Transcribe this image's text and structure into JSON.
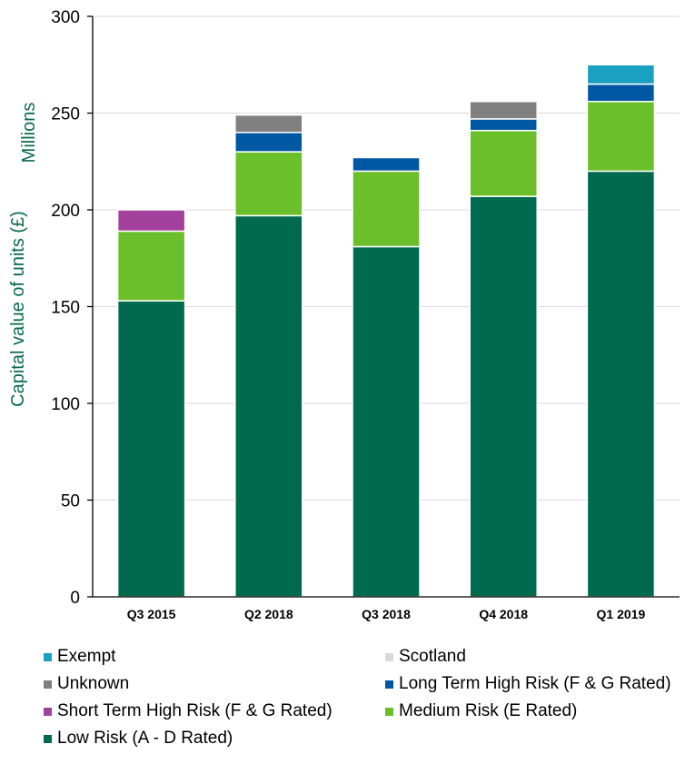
{
  "chart_data": {
    "type": "bar",
    "stacked": true,
    "title": "",
    "xlabel": "",
    "ylabel": "Capital value of units (£)",
    "y_unit_label": "Millions",
    "ylim": [
      0,
      300
    ],
    "yticks": [
      0,
      50,
      100,
      150,
      200,
      250,
      300
    ],
    "grid": true,
    "legend_position": "bottom",
    "categories": [
      "Q3 2015",
      "Q2 2018",
      "Q3 2018",
      "Q4 2018",
      "Q1 2019"
    ],
    "series": [
      {
        "name": "Low Risk (A - D Rated)",
        "color": "#006a4e",
        "values": [
          153,
          197,
          181,
          207,
          220
        ]
      },
      {
        "name": "Medium Risk (E Rated)",
        "color": "#6abf2a",
        "values": [
          36,
          33,
          39,
          34,
          36
        ]
      },
      {
        "name": "Short Term High Risk (F & G Rated)",
        "color": "#a3409c",
        "values": [
          11,
          0,
          0,
          0,
          0
        ]
      },
      {
        "name": "Long Term High Risk (F & G Rated)",
        "color": "#0058a3",
        "values": [
          0,
          10,
          7,
          6,
          9
        ]
      },
      {
        "name": "Unknown",
        "color": "#808080",
        "values": [
          0,
          9,
          0,
          9,
          0
        ]
      },
      {
        "name": "Scotland",
        "color": "#d9d9d9",
        "values": [
          0,
          0,
          0,
          0,
          0
        ]
      },
      {
        "name": "Exempt",
        "color": "#1aa0c0",
        "values": [
          0,
          0,
          0,
          0,
          10
        ]
      }
    ],
    "legend_order": [
      "Exempt",
      "Scotland",
      "Unknown",
      "Long Term High Risk (F & G Rated)",
      "Short Term High Risk (F & G Rated)",
      "Medium Risk (E Rated)",
      "Low Risk (A - D Rated)"
    ]
  }
}
